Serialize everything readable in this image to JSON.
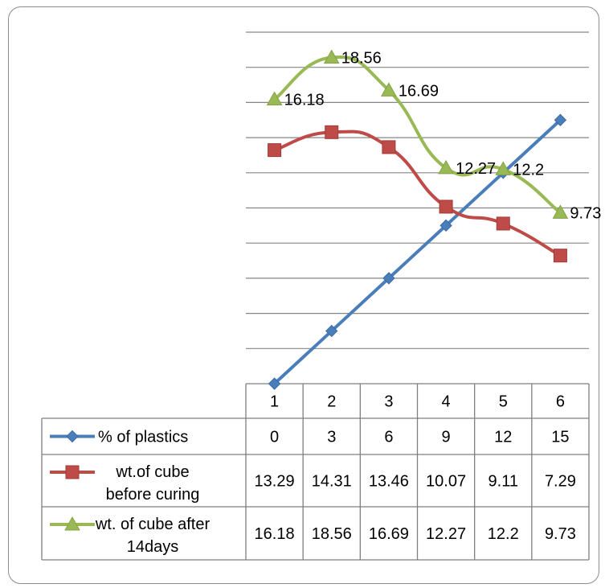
{
  "chart_data": {
    "type": "line",
    "categories": [
      "1",
      "2",
      "3",
      "4",
      "5",
      "6"
    ],
    "ylim": [
      0,
      20
    ],
    "grid": true,
    "legend": "data-table",
    "series": [
      {
        "name": "% of plastics",
        "values": [
          0,
          3,
          6,
          9,
          12,
          15
        ],
        "color": "#4a7ebb",
        "marker": "diamond",
        "smooth": false,
        "show_labels": false
      },
      {
        "name": "wt.of cube before curing",
        "display_lines": [
          "wt.of cube",
          "before curing"
        ],
        "values": [
          13.29,
          14.31,
          13.46,
          10.07,
          9.11,
          7.29
        ],
        "color": "#be4b48",
        "marker": "square",
        "smooth": true,
        "show_labels": false
      },
      {
        "name": "wt. of cube after 14days",
        "display_lines": [
          "wt. of cube after",
          "14days"
        ],
        "values": [
          16.18,
          18.56,
          16.69,
          12.27,
          12.2,
          9.73
        ],
        "color": "#98b954",
        "marker": "triangle",
        "smooth": true,
        "show_labels": true
      }
    ],
    "table_values": [
      [
        "0",
        "3",
        "6",
        "9",
        "12",
        "15"
      ],
      [
        "13.29",
        "14.31",
        "13.46",
        "10.07",
        "9.11",
        "7.29"
      ],
      [
        "16.18",
        "18.56",
        "16.69",
        "12.27",
        "12.2",
        "9.73"
      ]
    ]
  }
}
